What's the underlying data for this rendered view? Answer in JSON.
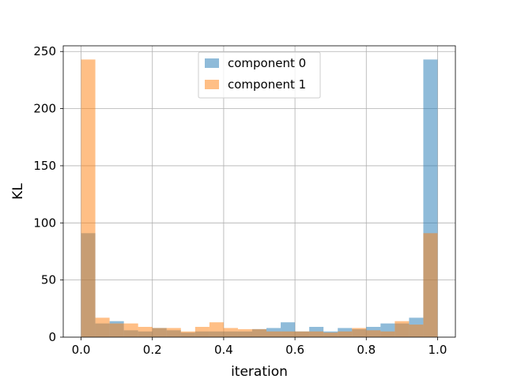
{
  "chart_data": {
    "type": "bar",
    "subtype": "overlaid-histogram",
    "xlabel": "iteration",
    "ylabel": "KL",
    "xlim": [
      -0.05,
      1.05
    ],
    "ylim": [
      0,
      255
    ],
    "xticks": [
      0.0,
      0.2,
      0.4,
      0.6,
      0.8,
      1.0
    ],
    "xtick_labels": [
      "0.0",
      "0.2",
      "0.4",
      "0.6",
      "0.8",
      "1.0"
    ],
    "yticks": [
      0,
      50,
      100,
      150,
      200,
      250
    ],
    "ytick_labels": [
      "0",
      "50",
      "100",
      "150",
      "200",
      "250"
    ],
    "grid": true,
    "legend_position": "top-center",
    "bin_edges": [
      0.0,
      0.04,
      0.08,
      0.12,
      0.16,
      0.2,
      0.24,
      0.28,
      0.32,
      0.36,
      0.4,
      0.44,
      0.48,
      0.52,
      0.56,
      0.6,
      0.64,
      0.68,
      0.72,
      0.76,
      0.8,
      0.84,
      0.88,
      0.92,
      0.96,
      1.0
    ],
    "series": [
      {
        "name": "component 0",
        "color": "#1f77b4",
        "alpha": 0.5,
        "values": [
          91,
          12,
          14,
          6,
          5,
          8,
          6,
          4,
          5,
          5,
          5,
          5,
          7,
          8,
          13,
          5,
          9,
          5,
          8,
          7,
          9,
          12,
          12,
          17,
          243
        ]
      },
      {
        "name": "component 1",
        "color": "#ff7f0e",
        "alpha": 0.5,
        "values": [
          243,
          17,
          12,
          12,
          9,
          8,
          8,
          5,
          9,
          13,
          8,
          7,
          7,
          5,
          5,
          5,
          5,
          4,
          5,
          8,
          6,
          5,
          14,
          11,
          91
        ]
      }
    ]
  }
}
